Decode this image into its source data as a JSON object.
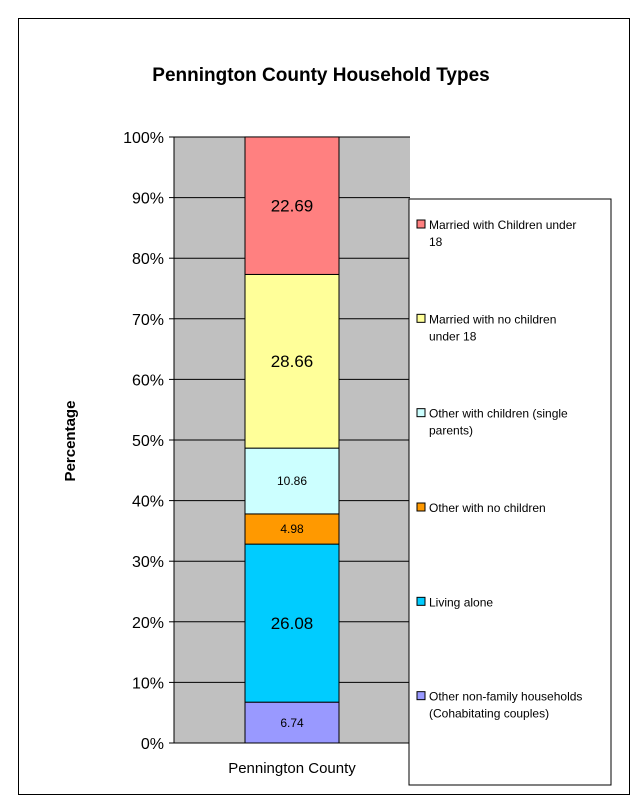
{
  "chart_data": {
    "type": "bar",
    "stacked": true,
    "title": "Pennington County Household Types",
    "ylabel": "Percentage",
    "categories": [
      "Pennington County"
    ],
    "ylim": [
      0,
      100
    ],
    "yticks": [
      "0%",
      "10%",
      "20%",
      "30%",
      "40%",
      "50%",
      "60%",
      "70%",
      "80%",
      "90%",
      "100%"
    ],
    "grid": true,
    "legend_position": "right",
    "plot_background": "#c0c0c0",
    "series": [
      {
        "name": "Other non-family households (Cohabitating couples)",
        "values": [
          6.74
        ],
        "label": "6.74",
        "color": "#9999ff"
      },
      {
        "name": "Living alone",
        "values": [
          26.08
        ],
        "label": "26.08",
        "color": "#00ccff"
      },
      {
        "name": "Other with no children",
        "values": [
          4.98
        ],
        "label": "4.98",
        "color": "#ff9900"
      },
      {
        "name": "Other with children (single parents)",
        "values": [
          10.86
        ],
        "label": "10.86",
        "color": "#ccffff"
      },
      {
        "name": "Married with no children under 18",
        "values": [
          28.66
        ],
        "label": "28.66",
        "color": "#ffff99"
      },
      {
        "name": "Married with Children under 18",
        "values": [
          22.69
        ],
        "label": "22.69",
        "color": "#ff8080"
      }
    ]
  }
}
